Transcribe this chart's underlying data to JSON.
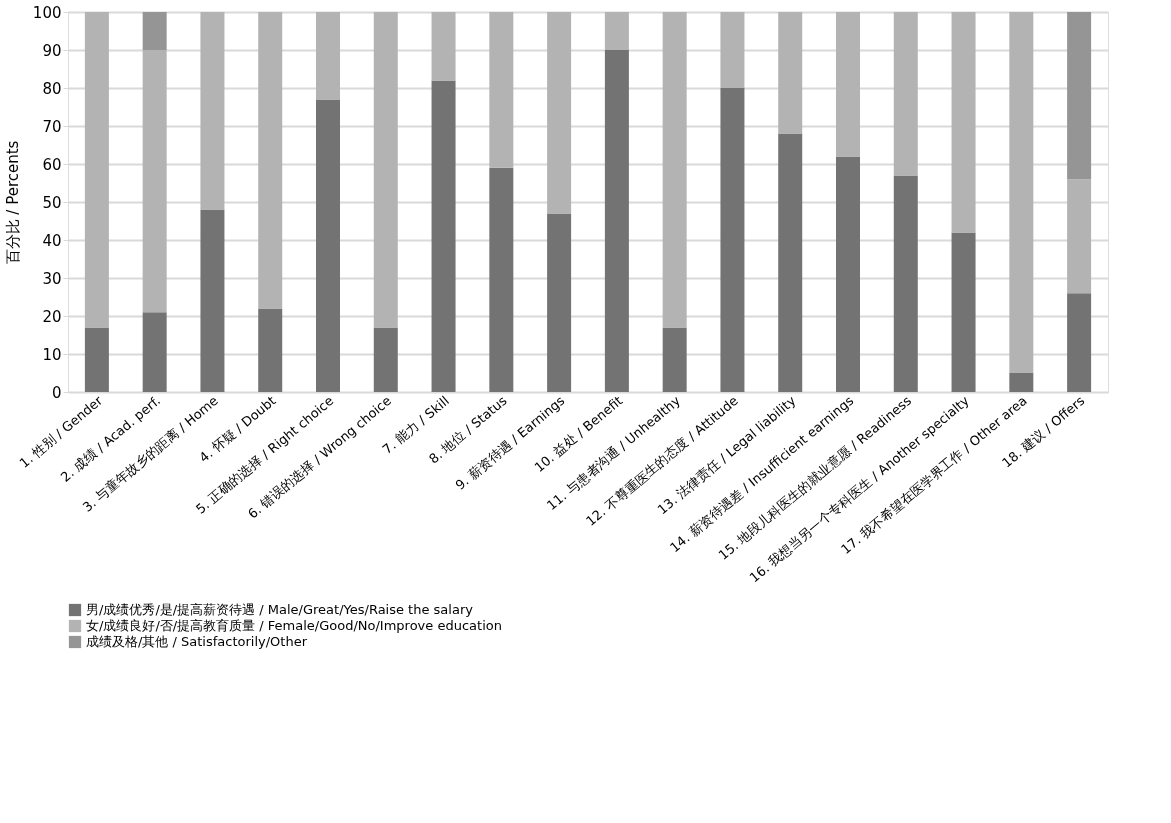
{
  "chart_data": {
    "type": "bar",
    "stacked": true,
    "ylabel": "百分比  /  Percents",
    "categories": [
      "1. 性别 / Gender",
      "2. 成绩 / Acad. perf.",
      "3. 与童年故乡的距离 / Home",
      "4. 怀疑 / Doubt",
      "5. 正确的选择 / Right choice",
      "6. 错误的选择 / Wrong choice",
      "7. 能力 / Skill",
      "8. 地位 / Status",
      "9. 薪资待遇 / Earnings",
      "10. 益处 / Benefit",
      "11. 与患者沟通 / Unhealthy",
      "12. 不尊重医生的态度 / Attitude",
      "13. 法律责任 / Legal liability",
      "14. 薪资待遇差 / Insufficient earnings",
      "15. 地段儿科医生的就业意愿 / Readiness",
      "16. 我想当另一个专科医生 / Another specialty",
      "17. 我不希望在医学界工作 / Other area",
      "18. 建议 / Offers"
    ],
    "series": [
      {
        "name": "男/成绩优秀/是/提高薪资待遇 / Male/Great/Yes/Raise  the  salary",
        "color": "#737373",
        "values": [
          17,
          21,
          48,
          22,
          77,
          17,
          82,
          59,
          47,
          90,
          17,
          80,
          68,
          62,
          57,
          42,
          5,
          26
        ]
      },
      {
        "name": "女/成绩良好/否/提高教育质量 / Female/Good/No/Improve  education",
        "color": "#b3b3b3",
        "values": [
          83,
          69,
          52,
          78,
          23,
          83,
          18,
          41,
          53,
          10,
          83,
          20,
          32,
          38,
          43,
          58,
          95,
          30
        ]
      },
      {
        "name": "成绩及格/其他 / Satisfactorily/Other",
        "color": "#959595",
        "values": [
          null,
          10,
          null,
          null,
          null,
          null,
          null,
          null,
          null,
          null,
          null,
          null,
          null,
          null,
          null,
          null,
          null,
          44
        ]
      }
    ],
    "ylim": [
      0,
      100
    ],
    "yticks": [
      0,
      10,
      20,
      30,
      40,
      50,
      60,
      70,
      80,
      90,
      100
    ],
    "grid": "y",
    "legend": "bottom"
  }
}
